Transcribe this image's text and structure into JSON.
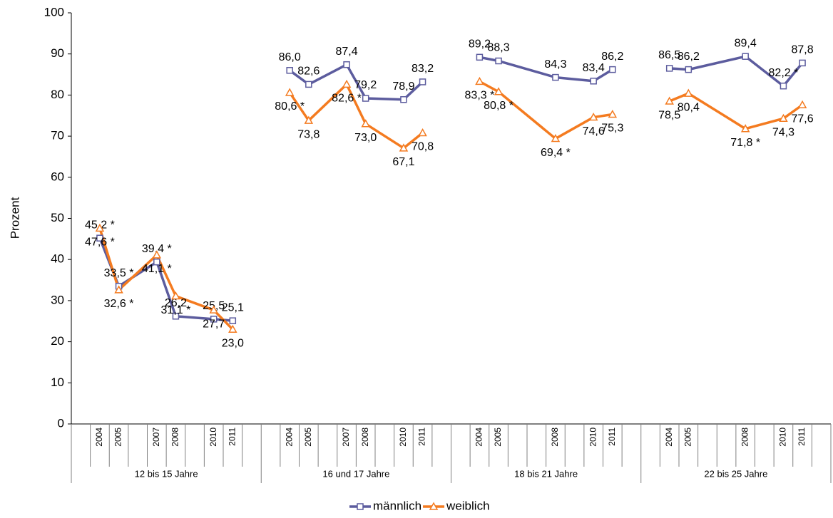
{
  "chart_data": {
    "type": "line",
    "ylabel": "Prozent",
    "ylim": [
      0,
      100
    ],
    "yticks": [
      0,
      10,
      20,
      30,
      40,
      50,
      60,
      70,
      80,
      90,
      100
    ],
    "groups": [
      "12 bis 15 Jahre",
      "16 und 17 Jahre",
      "18 bis 21 Jahre",
      "22 bis 25 Jahre"
    ],
    "categories": [
      [
        "2004",
        "2005",
        "2007",
        "2008",
        "2010",
        "2011"
      ],
      [
        "2004",
        "2005",
        "2007",
        "2008",
        "2010",
        "2011"
      ],
      [
        "2004",
        "2005",
        "2008",
        "2010",
        "2011"
      ],
      [
        "2004",
        "2005",
        "2008",
        "2010",
        "2011"
      ]
    ],
    "series": [
      {
        "name": "männlich",
        "color": "#5c5c9e",
        "marker": "square",
        "values": [
          [
            45.2,
            33.5,
            39.4,
            26.2,
            25.5,
            25.1
          ],
          [
            86.0,
            82.6,
            87.4,
            79.2,
            78.9,
            83.2
          ],
          [
            89.2,
            88.3,
            84.3,
            83.4,
            86.2
          ],
          [
            86.5,
            86.2,
            89.4,
            82.2,
            87.8
          ]
        ],
        "value_labels": [
          [
            "45,2 *",
            "33,5 *",
            "39,4 *",
            "26,2",
            "25,5",
            "25,1"
          ],
          [
            "86,0",
            "82,6",
            "87,4",
            "79,2",
            "78,9",
            "83,2"
          ],
          [
            "89,2",
            "88,3",
            "84,3",
            "83,4",
            "86,2"
          ],
          [
            "86,5",
            "86,2",
            "89,4",
            "82,2 *",
            "87,8"
          ]
        ]
      },
      {
        "name": "weiblich",
        "color": "#f47b20",
        "marker": "triangle",
        "values": [
          [
            47.6,
            32.6,
            41.1,
            31.1,
            27.7,
            23.0
          ],
          [
            80.6,
            73.8,
            82.6,
            73.0,
            67.1,
            70.8
          ],
          [
            83.3,
            80.8,
            69.4,
            74.6,
            75.3
          ],
          [
            78.5,
            80.4,
            71.8,
            74.3,
            77.6
          ]
        ],
        "value_labels": [
          [
            "47,6 *",
            "32,6 *",
            "41,1 *",
            "31,1 *",
            "27,7",
            "23,0"
          ],
          [
            "80,6 *",
            "73,8",
            "82,6 *",
            "73,0",
            "67,1",
            "70,8"
          ],
          [
            "83,3 *",
            "80,8 *",
            "69,4 *",
            "74,6",
            "75,3"
          ],
          [
            "78,5",
            "80,4",
            "71,8 *",
            "74,3",
            "77,6"
          ]
        ]
      }
    ]
  }
}
